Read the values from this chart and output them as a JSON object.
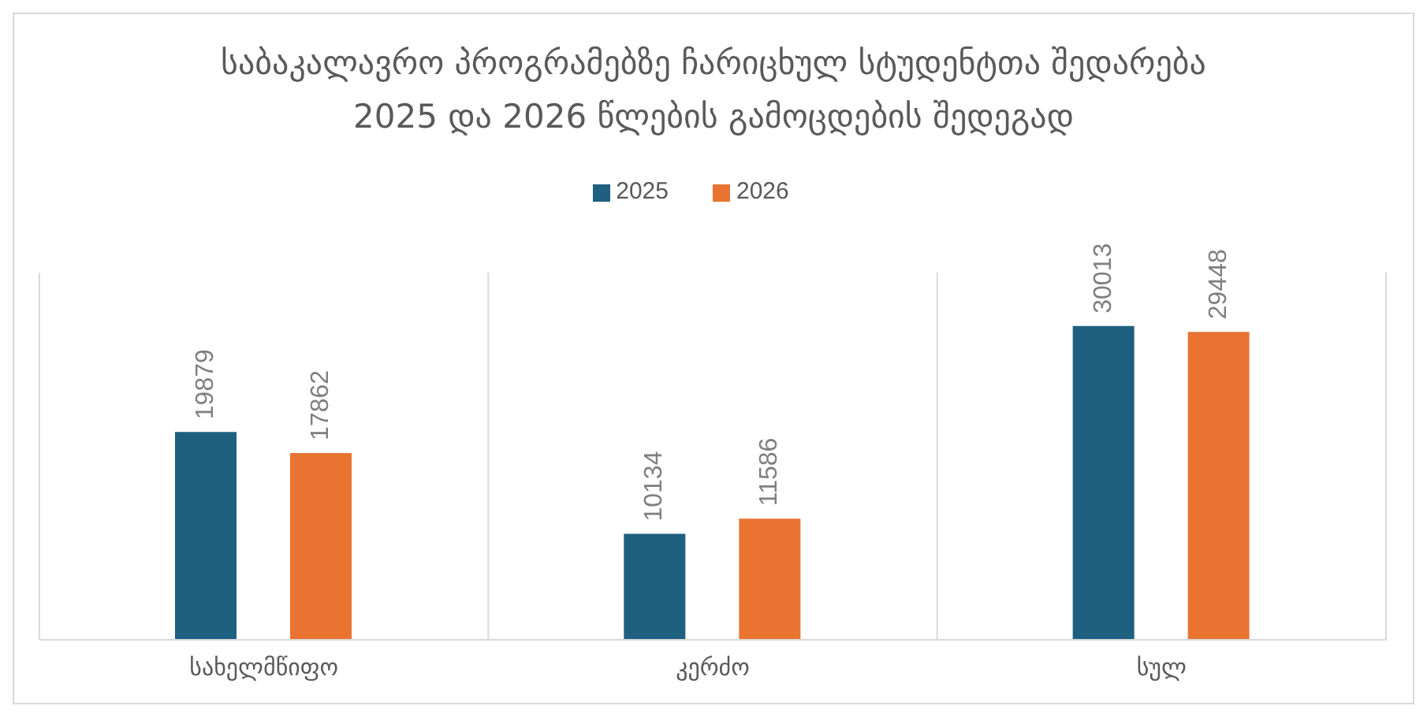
{
  "chart_data": {
    "type": "bar",
    "title": "საბაკალავრო პროგრამებზე ჩარიცხულ სტუდენტთა შედარება\n2025 და 2026 წლების გამოცდების შედეგად",
    "categories": [
      "სახელმწიფო",
      "კერძო",
      "სულ"
    ],
    "series": [
      {
        "name": "2025",
        "color": "#1f5f7f",
        "values": [
          19879,
          10134,
          30013
        ]
      },
      {
        "name": "2026",
        "color": "#e97432",
        "values": [
          17862,
          11586,
          29448
        ]
      }
    ],
    "data_labels": true,
    "grid": "x",
    "legend": "top"
  }
}
